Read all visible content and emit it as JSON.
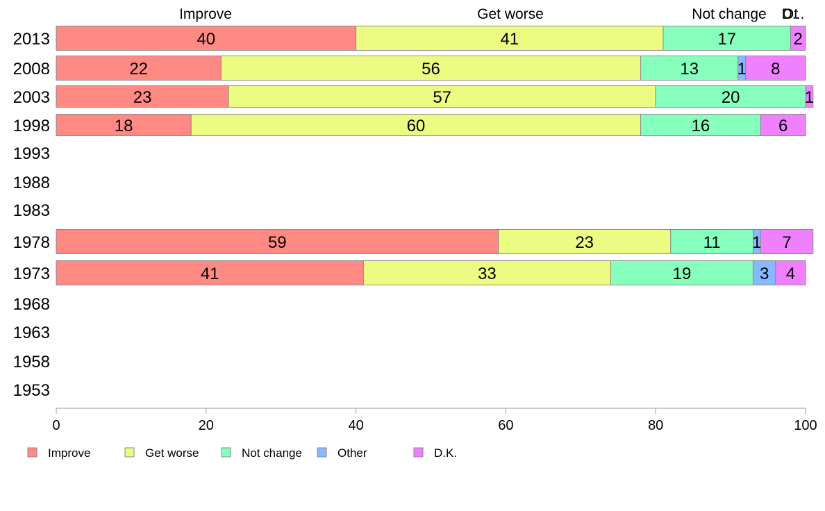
{
  "chart_data": {
    "type": "bar",
    "orientation": "horizontal",
    "stacked": true,
    "categories": [
      "2013",
      "2008",
      "2003",
      "1998",
      "1993",
      "1988",
      "1983",
      "1978",
      "1973",
      "1968",
      "1963",
      "1958",
      "1953"
    ],
    "series": [
      {
        "name": "Improve",
        "color": "#ff8a84",
        "values": [
          40,
          22,
          23,
          18,
          null,
          null,
          null,
          59,
          41,
          null,
          null,
          null,
          null
        ]
      },
      {
        "name": "Get worse",
        "color": "#ecfc82",
        "values": [
          41,
          56,
          57,
          60,
          null,
          null,
          null,
          23,
          33,
          null,
          null,
          null,
          null
        ]
      },
      {
        "name": "Not change",
        "color": "#87ffbd",
        "values": [
          17,
          13,
          20,
          16,
          null,
          null,
          null,
          11,
          19,
          null,
          null,
          null,
          null
        ]
      },
      {
        "name": "Other",
        "color": "#88b8ff",
        "values": [
          0,
          1,
          0,
          0,
          null,
          null,
          null,
          1,
          3,
          null,
          null,
          null,
          null
        ]
      },
      {
        "name": "D.K.",
        "color": "#ef80ff",
        "values": [
          2,
          8,
          1,
          6,
          null,
          null,
          null,
          7,
          4,
          null,
          null,
          null,
          null
        ]
      }
    ],
    "xlim": [
      0,
      100
    ],
    "xticks": [
      0,
      20,
      40,
      60,
      80,
      100
    ],
    "top_labels": [
      "Improve",
      "Get worse",
      "Not change",
      "Ot",
      "D..."
    ],
    "legend_position": "bottom",
    "grid": false
  }
}
